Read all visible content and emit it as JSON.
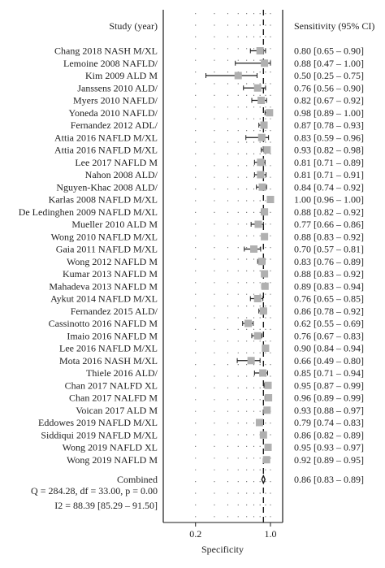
{
  "chart_data": {
    "type": "forest",
    "header": {
      "left": "Study (year)",
      "right": "Sensitivity (95% CI)"
    },
    "xlabel": "Specificity",
    "x_scale": "log",
    "xlim": [
      0.1,
      1.3
    ],
    "x_ticks": [
      {
        "value": 0.2,
        "label": "0.2"
      },
      {
        "value": 1.0,
        "label": "1.0"
      }
    ],
    "reference_line": 0.86,
    "studies": [
      {
        "label": "Chang 2018 NASH M/XL",
        "est": 0.8,
        "lo": 0.65,
        "hi": 0.9,
        "ci_text": "0.80 [0.65 – 0.90]"
      },
      {
        "label": "Lemoine 2008 NAFLD/",
        "est": 0.88,
        "lo": 0.47,
        "hi": 1.0,
        "ci_text": "0.88 [0.47 – 1.00]"
      },
      {
        "label": "Kim 2009 ALD M",
        "est": 0.5,
        "lo": 0.25,
        "hi": 0.75,
        "ci_text": "0.50 [0.25 – 0.75]"
      },
      {
        "label": "Janssens 2010 ALD/",
        "est": 0.76,
        "lo": 0.56,
        "hi": 0.9,
        "ci_text": "0.76 [0.56 – 0.90]"
      },
      {
        "label": "Myers 2010 NAFLD/",
        "est": 0.82,
        "lo": 0.67,
        "hi": 0.92,
        "ci_text": "0.82 [0.67 – 0.92]"
      },
      {
        "label": "Yoneda 2010 NAFLD/",
        "est": 0.98,
        "lo": 0.89,
        "hi": 1.0,
        "ci_text": "0.98 [0.89 – 1.00]"
      },
      {
        "label": "Fernandez 2012 ADL/",
        "est": 0.87,
        "lo": 0.78,
        "hi": 0.93,
        "ci_text": "0.87 [0.78 – 0.93]"
      },
      {
        "label": "Attia 2016 NAFLD M/XL",
        "est": 0.83,
        "lo": 0.59,
        "hi": 0.96,
        "ci_text": "0.83 [0.59 – 0.96]"
      },
      {
        "label": "Attia 2016 NAFLD M/XL",
        "est": 0.93,
        "lo": 0.82,
        "hi": 0.98,
        "ci_text": "0.93 [0.82 – 0.98]"
      },
      {
        "label": "Lee 2017 NAFLD M",
        "est": 0.81,
        "lo": 0.71,
        "hi": 0.89,
        "ci_text": "0.81 [0.71 – 0.89]"
      },
      {
        "label": "Nahon 2008 ALD/",
        "est": 0.81,
        "lo": 0.71,
        "hi": 0.91,
        "ci_text": "0.81 [0.71 – 0.91]"
      },
      {
        "label": "Nguyen-Khac 2008 ALD/",
        "est": 0.84,
        "lo": 0.74,
        "hi": 0.92,
        "ci_text": "0.84 [0.74 – 0.92]"
      },
      {
        "label": "Karlas 2008 NAFLD M/XL",
        "est": 1.0,
        "lo": 0.96,
        "hi": 1.0,
        "ci_text": "1.00 [0.96 – 1.00]"
      },
      {
        "label": "De Ledinghen 2009 NAFLD M/XL",
        "est": 0.88,
        "lo": 0.82,
        "hi": 0.92,
        "ci_text": "0.88 [0.82 – 0.92]"
      },
      {
        "label": "Mueller 2010 ALD M",
        "est": 0.77,
        "lo": 0.66,
        "hi": 0.86,
        "ci_text": "0.77 [0.66 – 0.86]"
      },
      {
        "label": "Wong 2010 NAFLD M/XL",
        "est": 0.88,
        "lo": 0.83,
        "hi": 0.92,
        "ci_text": "0.88 [0.83 – 0.92]"
      },
      {
        "label": "Gaia 2011 NAFLD M/XL",
        "est": 0.7,
        "lo": 0.57,
        "hi": 0.81,
        "ci_text": "0.70 [0.57 – 0.81]"
      },
      {
        "label": "Wong 2012 NAFLD M",
        "est": 0.83,
        "lo": 0.76,
        "hi": 0.89,
        "ci_text": "0.83 [0.76 – 0.89]"
      },
      {
        "label": "Kumar 2013 NAFLD M",
        "est": 0.88,
        "lo": 0.83,
        "hi": 0.92,
        "ci_text": "0.88 [0.83 – 0.92]"
      },
      {
        "label": "Mahadeva 2013 NAFLD M",
        "est": 0.89,
        "lo": 0.83,
        "hi": 0.94,
        "ci_text": "0.89 [0.83 – 0.94]"
      },
      {
        "label": "Aykut 2014 NAFLD M/XL",
        "est": 0.76,
        "lo": 0.65,
        "hi": 0.85,
        "ci_text": "0.76 [0.65 – 0.85]"
      },
      {
        "label": "Fernandez 2015 ALD/",
        "est": 0.86,
        "lo": 0.78,
        "hi": 0.92,
        "ci_text": "0.86 [0.78 – 0.92]"
      },
      {
        "label": "Cassinotto 2016 NAFLD M",
        "est": 0.62,
        "lo": 0.55,
        "hi": 0.69,
        "ci_text": "0.62 [0.55 – 0.69]"
      },
      {
        "label": "Imaio 2016 NAFLD M",
        "est": 0.76,
        "lo": 0.67,
        "hi": 0.83,
        "ci_text": "0.76 [0.67 – 0.83]"
      },
      {
        "label": "Lee 2016 NAFLD M/XL",
        "est": 0.9,
        "lo": 0.84,
        "hi": 0.94,
        "ci_text": "0.90 [0.84 – 0.94]"
      },
      {
        "label": "Mota 2016 NASH M/XL",
        "est": 0.66,
        "lo": 0.49,
        "hi": 0.8,
        "ci_text": "0.66 [0.49 – 0.80]"
      },
      {
        "label": "Thiele 2016 ALD/",
        "est": 0.85,
        "lo": 0.71,
        "hi": 0.94,
        "ci_text": "0.85 [0.71 – 0.94]"
      },
      {
        "label": "Chan 2017 NALFD XL",
        "est": 0.95,
        "lo": 0.87,
        "hi": 0.99,
        "ci_text": "0.95 [0.87 – 0.99]"
      },
      {
        "label": "Chan 2017 NALFD M",
        "est": 0.96,
        "lo": 0.89,
        "hi": 0.99,
        "ci_text": "0.96 [0.89 – 0.99]"
      },
      {
        "label": "Voican 2017 ALD M",
        "est": 0.93,
        "lo": 0.88,
        "hi": 0.97,
        "ci_text": "0.93 [0.88 – 0.97]"
      },
      {
        "label": "Eddowes 2019 NAFLD M/XL",
        "est": 0.79,
        "lo": 0.74,
        "hi": 0.83,
        "ci_text": "0.79 [0.74 – 0.83]"
      },
      {
        "label": "Siddiqui 2019 NAFLD M/XL",
        "est": 0.86,
        "lo": 0.82,
        "hi": 0.89,
        "ci_text": "0.86 [0.82 – 0.89]"
      },
      {
        "label": "Wong 2019 NAFLD XL",
        "est": 0.95,
        "lo": 0.93,
        "hi": 0.97,
        "ci_text": "0.95 [0.93 – 0.97]"
      },
      {
        "label": "Wong 2019 NAFLD M",
        "est": 0.92,
        "lo": 0.89,
        "hi": 0.95,
        "ci_text": "0.92 [0.89 – 0.95]"
      }
    ],
    "combined": {
      "label": "Combined",
      "est": 0.86,
      "lo": 0.83,
      "hi": 0.89,
      "ci_text": "0.86 [0.83 – 0.89]"
    },
    "heterogeneity": {
      "q_text": "Q = 284.28, df = 33.00, p = 0.00",
      "i2_text": "I2 = 88.39 [85.29 – 91.50]"
    },
    "colors": {
      "marker": "#b0b0b0",
      "line": "#1a1a1a",
      "text": "#222222"
    }
  }
}
